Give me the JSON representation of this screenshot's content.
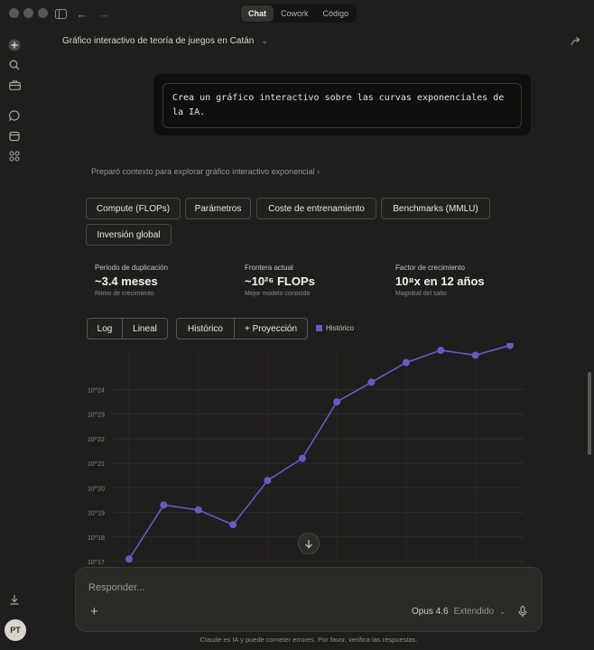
{
  "window": {
    "modes": [
      {
        "label": "Chat",
        "active": true
      },
      {
        "label": "Cowork",
        "active": false
      },
      {
        "label": "Código",
        "active": false
      }
    ]
  },
  "header": {
    "title": "Gráfico interactivo de teoría de juegos en Catán"
  },
  "user_message": {
    "text": "Crea un gráfico interactivo sobre las curvas exponenciales de la IA."
  },
  "context_line": "Preparó contexto para explorar gráfico interactivo exponencial  ›",
  "tabs": [
    "Compute (FLOPs)",
    "Parámetros",
    "Coste de entrenamiento",
    "Benchmarks (MMLU)",
    "Inversión global"
  ],
  "stats": [
    {
      "label": "Periodo de duplicación",
      "value": "~3.4 meses",
      "sub": "Ritmo de crecimiento"
    },
    {
      "label": "Frontera actual",
      "value": "~10²⁶ FLOPs",
      "sub": "Mejor modelo conocido"
    },
    {
      "label": "Factor de crecimiento",
      "value": "10⁸x en 12 años",
      "sub": "Magnitud del salto"
    }
  ],
  "scale_toggles": [
    "Log",
    "Lineal"
  ],
  "view_toggles": [
    "Histórico",
    "+ Proyección"
  ],
  "chart_data": {
    "type": "line",
    "series": [
      {
        "name": "Histórico",
        "color": "#6b57c9",
        "values": [
          17.1,
          19.3,
          19.1,
          18.5,
          20.3,
          21.2,
          23.5,
          24.3,
          25.1,
          25.6,
          25.4,
          25.8
        ]
      }
    ],
    "yscale": "log",
    "ylim": [
      17,
      25.6
    ],
    "yticks": [
      "10^17",
      "10^18",
      "10^19",
      "10^20",
      "10^21",
      "10^22",
      "10^23",
      "10^24"
    ],
    "grid": true,
    "legend": "top"
  },
  "composer": {
    "placeholder": "Responder...",
    "model": "Opus 4.6",
    "mode": "Extendido"
  },
  "user": {
    "initials": "PT"
  },
  "disclaimer": "Claude es IA y puede cometer errores. Por favor, verifica las respuestas."
}
